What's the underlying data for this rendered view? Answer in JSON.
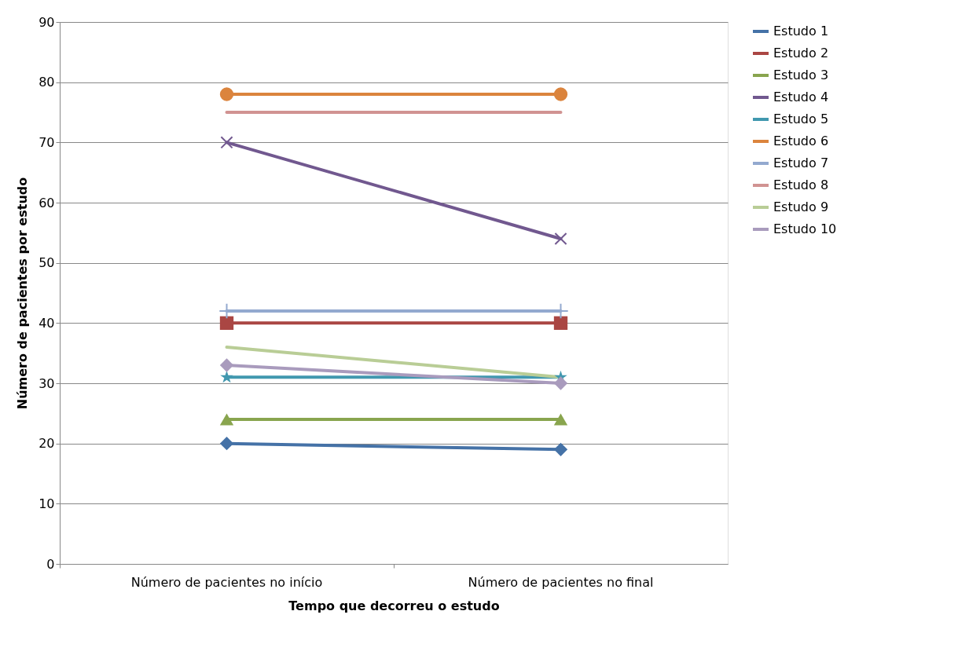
{
  "chart_data": {
    "type": "line",
    "xlabel": "Tempo que decorreu o estudo",
    "ylabel": "Número de pacientes por estudo",
    "categories": [
      "Número de pacientes no início",
      "Número de pacientes no final"
    ],
    "ylim": [
      0,
      90
    ],
    "yticks": [
      0,
      10,
      20,
      30,
      40,
      50,
      60,
      70,
      80,
      90
    ],
    "grid": "y",
    "legend": "right",
    "series": [
      {
        "name": "Estudo 1",
        "color": "#4572a7",
        "marker": "diamond",
        "values": [
          20,
          19
        ]
      },
      {
        "name": "Estudo 2",
        "color": "#aa4643",
        "marker": "square",
        "values": [
          40,
          40
        ]
      },
      {
        "name": "Estudo 3",
        "color": "#89a54e",
        "marker": "triangle",
        "values": [
          24,
          24
        ]
      },
      {
        "name": "Estudo 4",
        "color": "#71588f",
        "marker": "cross",
        "values": [
          70,
          54
        ]
      },
      {
        "name": "Estudo 5",
        "color": "#4198af",
        "marker": "star",
        "values": [
          31,
          31
        ]
      },
      {
        "name": "Estudo 6",
        "color": "#db843d",
        "marker": "circle",
        "values": [
          78,
          78
        ]
      },
      {
        "name": "Estudo 7",
        "color": "#93a9cf",
        "marker": "plus",
        "values": [
          42,
          42
        ]
      },
      {
        "name": "Estudo 8",
        "color": "#d19392",
        "marker": "none",
        "values": [
          75,
          75
        ]
      },
      {
        "name": "Estudo 9",
        "color": "#b9cd96",
        "marker": "none",
        "values": [
          36,
          31
        ]
      },
      {
        "name": "Estudo 10",
        "color": "#a99bbd",
        "marker": "diamond",
        "values": [
          33,
          30
        ]
      }
    ]
  }
}
